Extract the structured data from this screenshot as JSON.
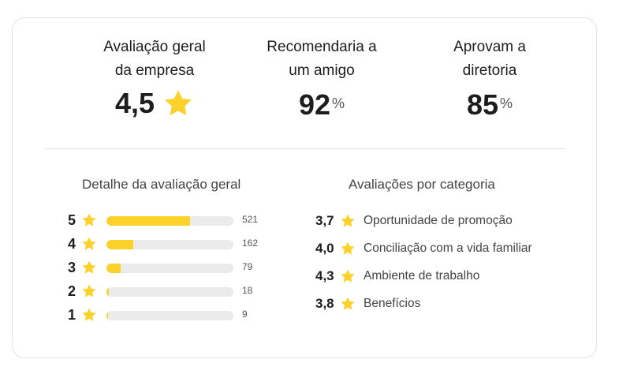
{
  "summary": {
    "overall": {
      "label_line1": "Avaliação geral",
      "label_line2": "da empresa",
      "value": "4,5"
    },
    "recommend": {
      "label_line1": "Recomendaria a",
      "label_line2": "um amigo",
      "value": "92",
      "unit": "%"
    },
    "approve": {
      "label_line1": "Aprovam a",
      "label_line2": "diretoria",
      "value": "85",
      "unit": "%"
    }
  },
  "breakdown": {
    "title": "Detalhe da avaliação geral",
    "rows": [
      {
        "stars": "5",
        "count": "521",
        "fraction": 0.66
      },
      {
        "stars": "4",
        "count": "162",
        "fraction": 0.21
      },
      {
        "stars": "3",
        "count": "79",
        "fraction": 0.11
      },
      {
        "stars": "2",
        "count": "18",
        "fraction": 0.02
      },
      {
        "stars": "1",
        "count": "9",
        "fraction": 0.01
      }
    ]
  },
  "categories": {
    "title": "Avaliações por categoria",
    "items": [
      {
        "value": "3,7",
        "label": "Oportunidade de promoção"
      },
      {
        "value": "4,0",
        "label": "Conciliação com a vida familiar"
      },
      {
        "value": "4,3",
        "label": "Ambiente de trabalho"
      },
      {
        "value": "3,8",
        "label": "Benefícios"
      }
    ]
  },
  "colors": {
    "star": "#fcd12a",
    "bar_track": "#ebebeb",
    "border": "#e3e3e3"
  },
  "icons": {
    "rating_star": "star-icon"
  }
}
